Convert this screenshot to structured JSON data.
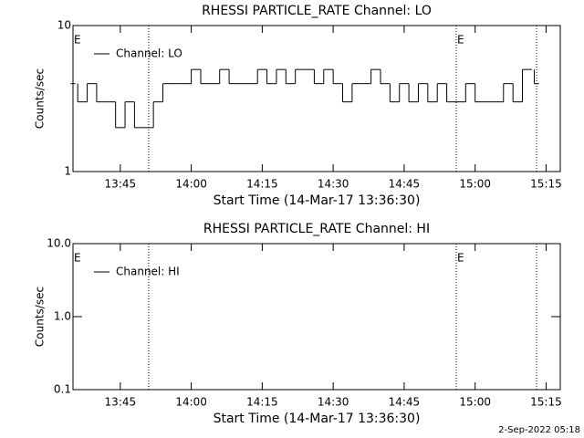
{
  "chart_data": [
    {
      "type": "line",
      "title": "RHESSI PARTICLE_RATE Channel: LO",
      "ylabel": "Counts/sec",
      "xlabel": "Start Time (14-Mar-17 13:36:30)",
      "log_y": true,
      "xlim": [
        "13:35",
        "15:18"
      ],
      "xticks": [
        "13:45",
        "14:00",
        "14:15",
        "14:30",
        "14:45",
        "15:00",
        "15:15"
      ],
      "ylim": [
        1,
        10
      ],
      "yticks": [
        1,
        10
      ],
      "legend": "upper left",
      "annotations": [
        {
          "x": "13:35",
          "label": "E"
        },
        {
          "x": "14:56",
          "label": "E"
        }
      ],
      "vlines": [
        "13:51",
        "14:56",
        "15:13"
      ],
      "x": [
        "13:35",
        "13:37",
        "13:39",
        "13:41",
        "13:43",
        "13:45",
        "13:47",
        "13:49",
        "13:51",
        "13:53",
        "13:55",
        "13:57",
        "13:59",
        "14:01",
        "14:03",
        "14:05",
        "14:07",
        "14:09",
        "14:11",
        "14:13",
        "14:15",
        "14:17",
        "14:19",
        "14:21",
        "14:23",
        "14:25",
        "14:27",
        "14:29",
        "14:31",
        "14:33",
        "14:35",
        "14:37",
        "14:39",
        "14:41",
        "14:43",
        "14:45",
        "14:47",
        "14:49",
        "14:51",
        "14:53",
        "14:55",
        "14:57",
        "14:59",
        "15:01",
        "15:03",
        "15:05",
        "15:07",
        "15:09",
        "15:11",
        "15:13"
      ],
      "series": [
        {
          "name": "Channel: LO",
          "color": "#000000",
          "values": [
            4,
            3,
            4,
            3,
            3,
            2,
            3,
            2,
            2,
            3,
            4,
            4,
            4,
            5,
            4,
            4,
            5,
            4,
            4,
            4,
            5,
            4,
            5,
            4,
            5,
            5,
            4,
            5,
            4,
            3,
            4,
            4,
            5,
            4,
            3,
            4,
            3,
            4,
            3,
            4,
            3,
            3,
            4,
            3,
            3,
            3,
            4,
            3,
            5,
            4
          ]
        }
      ]
    },
    {
      "type": "line",
      "title": "RHESSI PARTICLE_RATE Channel: HI",
      "ylabel": "Counts/sec",
      "xlabel": "Start Time (14-Mar-17 13:36:30)",
      "log_y": true,
      "xlim": [
        "13:35",
        "15:18"
      ],
      "xticks": [
        "13:45",
        "14:00",
        "14:15",
        "14:30",
        "14:45",
        "15:00",
        "15:15"
      ],
      "ylim": [
        0.1,
        10
      ],
      "yticks": [
        0.1,
        {
          "value": 1,
          "label": "1.0"
        },
        {
          "value": 10,
          "label": "10.0"
        }
      ],
      "legend": "upper left",
      "annotations": [
        {
          "x": "13:35",
          "label": "E"
        },
        {
          "x": "14:56",
          "label": "E"
        }
      ],
      "vlines": [
        "13:51",
        "14:56",
        "15:13"
      ],
      "x": [],
      "series": [
        {
          "name": "Channel: HI",
          "color": "#000000",
          "values": []
        }
      ]
    }
  ],
  "footer": "2-Sep-2022 05:18"
}
